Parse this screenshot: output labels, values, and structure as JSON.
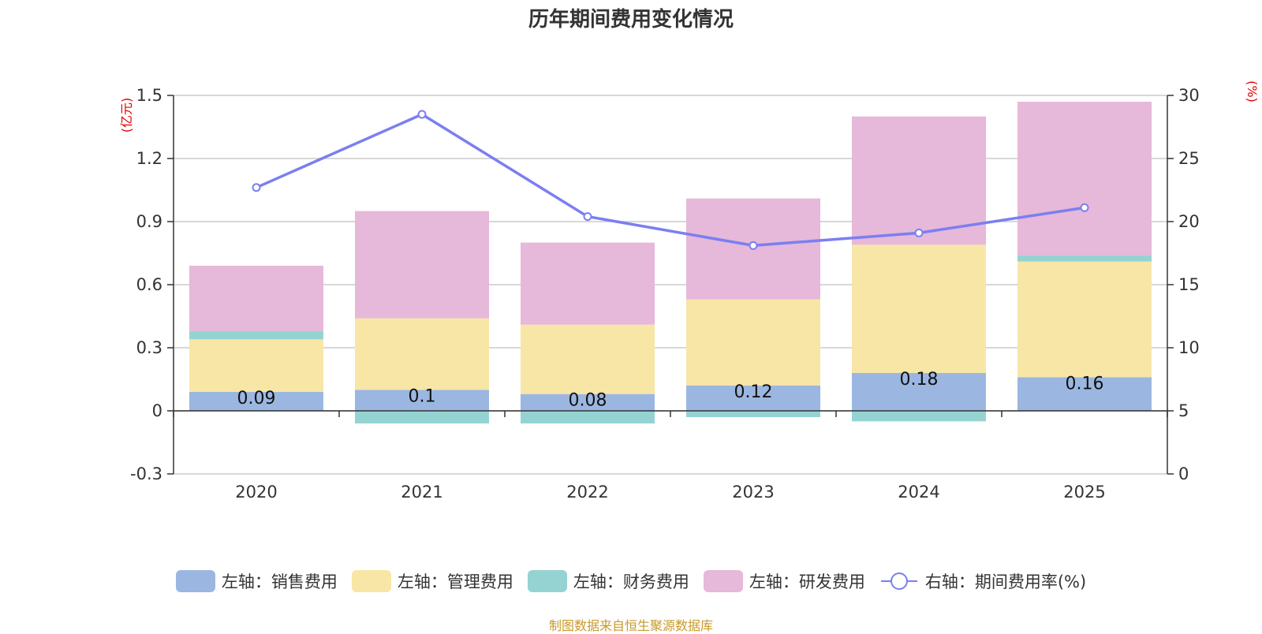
{
  "chart_data": {
    "type": "bar",
    "title": "历年期间费用变化情况",
    "categories": [
      "2020",
      "2021",
      "2022",
      "2023",
      "2024",
      "2025"
    ],
    "left_axis": {
      "unit": "(亿元)",
      "ylim": [
        -0.3,
        1.5
      ],
      "ticks": [
        "1.5",
        "1.2",
        "0.9",
        "0.6",
        "0.3",
        "0",
        "-0.3"
      ],
      "tick_values": [
        1.5,
        1.2,
        0.9,
        0.6,
        0.3,
        0,
        -0.3
      ]
    },
    "right_axis": {
      "unit": "(%)",
      "ylim": [
        0,
        30
      ],
      "ticks": [
        "30",
        "25",
        "20",
        "15",
        "10",
        "5",
        "0"
      ],
      "tick_values": [
        30,
        25,
        20,
        15,
        10,
        5,
        0
      ]
    },
    "series": [
      {
        "name": "左轴：销售费用",
        "kind": "bar",
        "color": "#9bb7e1",
        "values": [
          0.09,
          0.1,
          0.08,
          0.12,
          0.18,
          0.16
        ],
        "labels": [
          "0.09",
          "0.1",
          "0.08",
          "0.12",
          "0.18",
          "0.16"
        ]
      },
      {
        "name": "左轴：管理费用",
        "kind": "bar",
        "color": "#f7e6a6",
        "values": [
          0.25,
          0.34,
          0.33,
          0.41,
          0.61,
          0.55
        ]
      },
      {
        "name": "左轴：财务费用",
        "kind": "bar",
        "color": "#95d3d3",
        "values": [
          0.04,
          -0.06,
          -0.06,
          -0.03,
          -0.05,
          0.03
        ]
      },
      {
        "name": "左轴：研发费用",
        "kind": "bar",
        "color": "#e6b8d9",
        "values": [
          0.31,
          0.51,
          0.39,
          0.48,
          0.61,
          0.73
        ]
      },
      {
        "name": "右轴：期间费用率(%)",
        "kind": "line",
        "color": "#7b7ff0",
        "values": [
          22.7,
          28.5,
          20.4,
          18.1,
          19.1,
          21.1
        ]
      }
    ],
    "accent_color": "#e00000",
    "source_color": "#c79a2a"
  },
  "source": "制图数据来自恒生聚源数据库"
}
